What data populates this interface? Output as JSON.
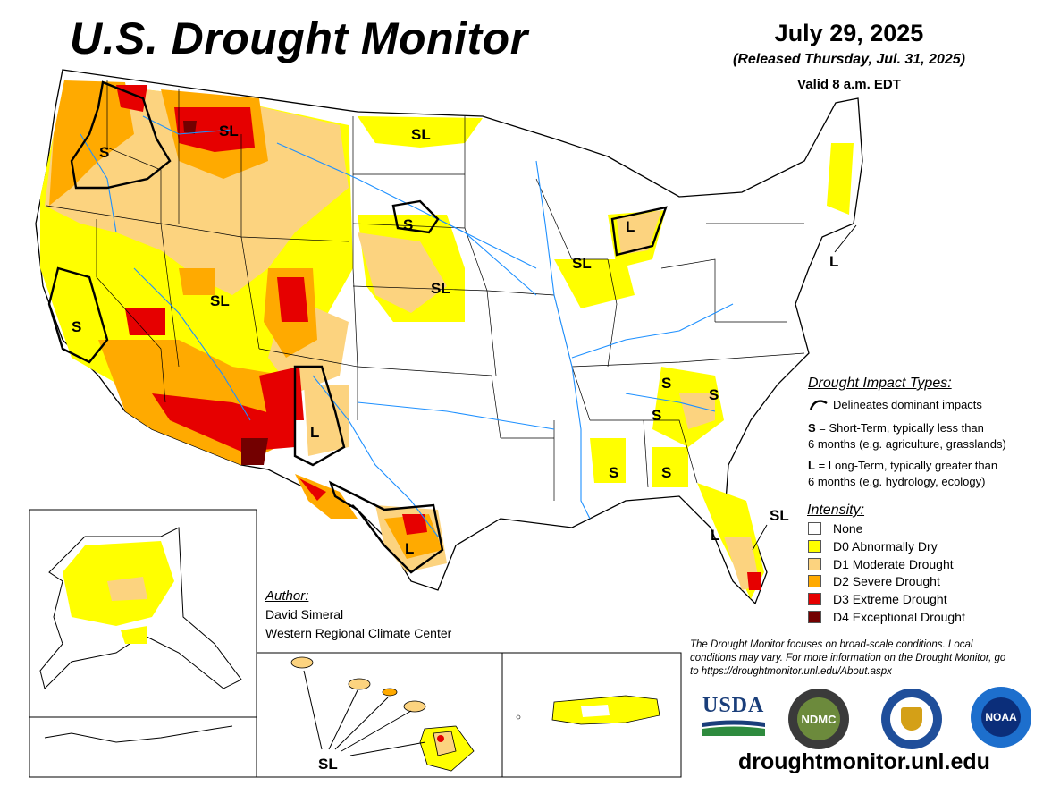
{
  "header": {
    "title": "U.S. Drought Monitor",
    "date": "July 29, 2025",
    "released": "(Released Thursday, Jul. 31, 2025)",
    "valid": "Valid 8 a.m. EDT"
  },
  "map_labels": {
    "sl": "SL",
    "s": "S",
    "l": "L"
  },
  "impact_legend": {
    "title": "Drought Impact Types:",
    "delineates": "Delineates dominant impacts",
    "s_key": "S",
    "s_text_1": " = Short-Term, typically less than",
    "s_text_2": "6 months (e.g. agriculture, grasslands)",
    "l_key": "L",
    "l_text_1": " = Long-Term, typically greater than",
    "l_text_2": "6 months (e.g. hydrology, ecology)"
  },
  "intensity_legend": {
    "title": "Intensity:",
    "items": [
      {
        "label": "None",
        "color": "#ffffff"
      },
      {
        "label": "D0 Abnormally Dry",
        "color": "#ffff00"
      },
      {
        "label": "D1 Moderate Drought",
        "color": "#fcd37f"
      },
      {
        "label": "D2 Severe Drought",
        "color": "#ffaa00"
      },
      {
        "label": "D3 Extreme Drought",
        "color": "#e60000"
      },
      {
        "label": "D4 Exceptional Drought",
        "color": "#730000"
      }
    ]
  },
  "author": {
    "title": "Author:",
    "name": "David Simeral",
    "org": "Western Regional Climate Center"
  },
  "note": "The Drought Monitor focuses on broad-scale conditions. Local conditions may vary. For more information on the Drought Monitor, go to https://droughtmonitor.unl.edu/About.aspx",
  "logos": {
    "usda": "USDA",
    "ndmc": "NDMC",
    "noaa": "NOAA"
  },
  "url": "droughtmonitor.unl.edu"
}
